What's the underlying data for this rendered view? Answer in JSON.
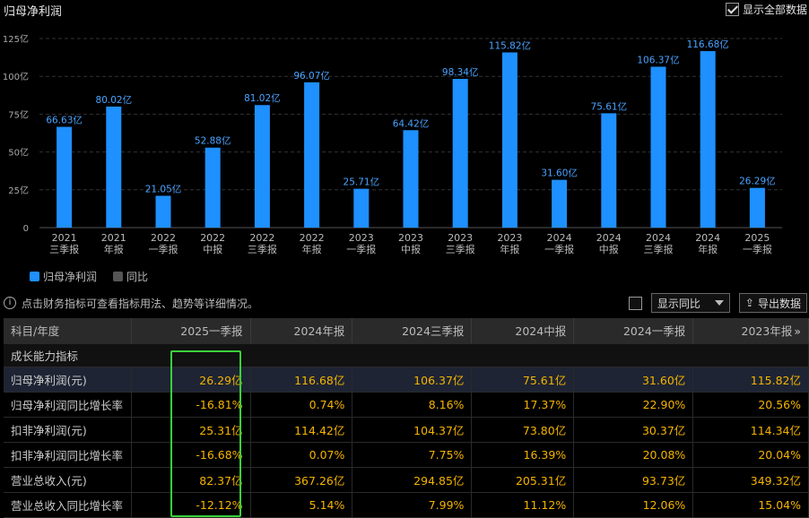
{
  "header": {
    "title": "归母净利润",
    "show_all_label": "显示全部数据",
    "show_all_checked": true
  },
  "chart_data": {
    "type": "bar",
    "categories": [
      [
        "2021",
        "三季报"
      ],
      [
        "2021",
        "年报"
      ],
      [
        "2022",
        "一季报"
      ],
      [
        "2022",
        "中报"
      ],
      [
        "2022",
        "三季报"
      ],
      [
        "2022",
        "年报"
      ],
      [
        "2023",
        "一季报"
      ],
      [
        "2023",
        "中报"
      ],
      [
        "2023",
        "三季报"
      ],
      [
        "2023",
        "年报"
      ],
      [
        "2024",
        "一季报"
      ],
      [
        "2024",
        "中报"
      ],
      [
        "2024",
        "三季报"
      ],
      [
        "2024",
        "年报"
      ],
      [
        "2025",
        "一季报"
      ]
    ],
    "series": [
      {
        "name": "归母净利润",
        "values": [
          66.63,
          80.02,
          21.05,
          52.88,
          81.02,
          96.07,
          25.71,
          64.42,
          98.34,
          115.82,
          31.6,
          75.61,
          106.37,
          116.68,
          26.29
        ]
      }
    ],
    "value_labels": [
      "66.63亿",
      "80.02亿",
      "21.05亿",
      "52.88亿",
      "81.02亿",
      "96.07亿",
      "25.71亿",
      "64.42亿",
      "98.34亿",
      "115.82亿",
      "31.60亿",
      "75.61亿",
      "106.37亿",
      "116.68亿",
      "26.29亿"
    ],
    "yticks": [
      0,
      25,
      50,
      75,
      100,
      125
    ],
    "ytick_labels": [
      "0",
      "25亿",
      "50亿",
      "75亿",
      "100亿",
      "125亿"
    ],
    "ylim": [
      0,
      125
    ],
    "bar_color": "#1e90ff",
    "label_color": "#4aa3ff"
  },
  "legend": {
    "items": [
      {
        "label": "归母净利润",
        "color": "#1e90ff"
      },
      {
        "label": "同比",
        "color": "#555555"
      }
    ]
  },
  "info": {
    "icon": "i",
    "text": "点击财务指标可查看指标用法、趋势等详细情况。",
    "select_value": "显示同比",
    "export_label": "导出数据",
    "export_icon": "⇪"
  },
  "table": {
    "corner": "科目/年度",
    "columns": [
      "2025一季报",
      "2024年报",
      "2024三季报",
      "2024中报",
      "2024一季报",
      "2023年报"
    ],
    "more_icon": "»",
    "section": "成长能力指标",
    "rows": [
      {
        "label": "归母净利润(元)",
        "values": [
          "26.29亿",
          "116.68亿",
          "106.37亿",
          "75.61亿",
          "31.60亿",
          "115.82亿"
        ]
      },
      {
        "label": "归母净利润同比增长率",
        "values": [
          "-16.81%",
          "0.74%",
          "8.16%",
          "17.37%",
          "22.90%",
          "20.56%"
        ]
      },
      {
        "label": "扣非净利润(元)",
        "values": [
          "25.31亿",
          "114.42亿",
          "104.37亿",
          "73.80亿",
          "30.37亿",
          "114.34亿"
        ]
      },
      {
        "label": "扣非净利润同比增长率",
        "values": [
          "-16.68%",
          "0.07%",
          "7.75%",
          "16.39%",
          "20.08%",
          "20.04%"
        ]
      },
      {
        "label": "营业总收入(元)",
        "values": [
          "82.37亿",
          "367.26亿",
          "294.85亿",
          "205.31亿",
          "93.73亿",
          "349.32亿"
        ]
      },
      {
        "label": "营业总收入同比增长率",
        "values": [
          "-12.12%",
          "5.14%",
          "7.99%",
          "11.12%",
          "12.06%",
          "15.04%"
        ]
      }
    ]
  }
}
